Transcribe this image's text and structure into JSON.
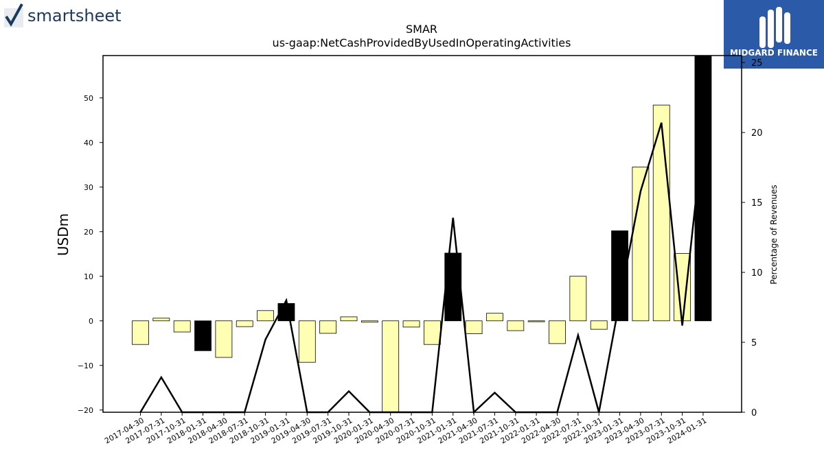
{
  "branding": {
    "left_logo_text": "smartsheet",
    "right_logo_text": "MIDGARD FINANCE",
    "right_logo_bg": "#2b5aa8"
  },
  "chart_data": {
    "type": "bar",
    "title": "SMAR",
    "subtitle": "us-gaap:NetCashProvidedByUsedInOperatingActivities",
    "ylabel": "USDm",
    "y2label": "Percentage of Revenues",
    "ylim": [
      -20.5,
      59.5
    ],
    "y2lim": [
      0,
      25.5
    ],
    "yticks": [
      -20,
      -10,
      0,
      10,
      20,
      30,
      40,
      50
    ],
    "y2ticks": [
      0,
      5,
      10,
      15,
      20,
      25
    ],
    "grid": false,
    "colors": {
      "positive_flow": "#ffffb3",
      "annual": "#000000",
      "line": "#000000"
    },
    "categories": [
      "2017-04-30",
      "2017-07-31",
      "2017-10-31",
      "2018-01-31",
      "2018-04-30",
      "2018-07-31",
      "2018-10-31",
      "2019-01-31",
      "2019-04-30",
      "2019-07-31",
      "2019-10-31",
      "2020-01-31",
      "2020-04-30",
      "2020-07-31",
      "2020-10-31",
      "2021-01-31",
      "2021-04-30",
      "2021-07-31",
      "2021-10-31",
      "2022-01-31",
      "2022-04-30",
      "2022-07-31",
      "2022-10-31",
      "2023-01-31",
      "2023-04-30",
      "2023-07-31",
      "2023-10-31",
      "2024-01-31"
    ],
    "series": [
      {
        "kind": "bar",
        "values": [
          -5.3,
          0.6,
          -2.5,
          -6.7,
          -8.2,
          -1.3,
          2.3,
          3.9,
          -9.3,
          -2.8,
          0.9,
          -0.3,
          -20.5,
          -1.4,
          -5.3,
          15.2,
          -2.9,
          1.7,
          -2.2,
          -0.2,
          -5.1,
          10.0,
          -1.9,
          20.2,
          34.5,
          48.4,
          15.1,
          59.5
        ],
        "annual": [
          false,
          false,
          false,
          true,
          false,
          false,
          false,
          true,
          false,
          false,
          false,
          false,
          false,
          false,
          false,
          true,
          false,
          false,
          false,
          false,
          false,
          false,
          false,
          true,
          false,
          false,
          false,
          true
        ]
      },
      {
        "kind": "line",
        "axis": "y2",
        "values": [
          0,
          2.5,
          0,
          0,
          0,
          0,
          5.2,
          8.0,
          0,
          0,
          1.5,
          0,
          0,
          0,
          0,
          13.9,
          0,
          1.4,
          0,
          0,
          0,
          5.5,
          0,
          8.0,
          15.8,
          20.7,
          6.2,
          20.0
        ]
      }
    ]
  }
}
